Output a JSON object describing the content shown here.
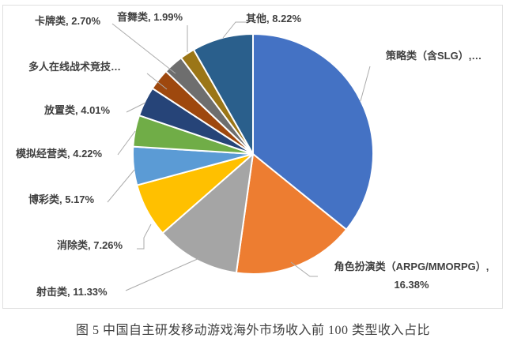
{
  "figure": {
    "caption": "图 5 中国自主研发移动游戏海外市场收入前 100 类型收入占比"
  },
  "chart_data": {
    "type": "pie",
    "title": "",
    "unit": "percent",
    "start_angle_deg": 0,
    "direction": "clockwise",
    "legend": "none",
    "label_style": "outside callout: name, percent",
    "slices": [
      {
        "name": "策略类（含SLG）",
        "value": 35.84,
        "value_estimated": true,
        "label_text": "策略类（含SLG）,…",
        "color": "#4472C4"
      },
      {
        "name": "角色扮演类（ARPG/MMORPG）",
        "value": 16.38,
        "value_estimated": false,
        "label_text": "角色扮演类（ARPG/MMORPG）,\n16.38%",
        "color": "#ED7D31"
      },
      {
        "name": "射击类",
        "value": 11.33,
        "value_estimated": false,
        "label_text": "射击类, 11.33%",
        "color": "#A5A5A5"
      },
      {
        "name": "消除类",
        "value": 7.26,
        "value_estimated": false,
        "label_text": "消除类, 7.26%",
        "color": "#FFC000"
      },
      {
        "name": "博彩类",
        "value": 5.17,
        "value_estimated": false,
        "label_text": "博彩类, 5.17%",
        "color": "#5B9BD5"
      },
      {
        "name": "模拟经营类",
        "value": 4.22,
        "value_estimated": false,
        "label_text": "模拟经营类, 4.22%",
        "color": "#70AD47"
      },
      {
        "name": "放置类",
        "value": 4.01,
        "value_estimated": false,
        "label_text": "放置类, 4.01%",
        "color": "#264478"
      },
      {
        "name": "多人在线战术竞技",
        "value": 2.88,
        "value_estimated": true,
        "label_text": "多人在线战术竞技…",
        "color": "#9E480E"
      },
      {
        "name": "卡牌类",
        "value": 2.7,
        "value_estimated": false,
        "label_text": "卡牌类, 2.70%",
        "color": "#6E6E6E"
      },
      {
        "name": "音舞类",
        "value": 1.99,
        "value_estimated": false,
        "label_text": "音舞类, 1.99%",
        "color": "#9B7617"
      },
      {
        "name": "其他",
        "value": 8.22,
        "value_estimated": false,
        "label_text": "其他, 8.22%",
        "color": "#2A5F8C"
      }
    ]
  }
}
